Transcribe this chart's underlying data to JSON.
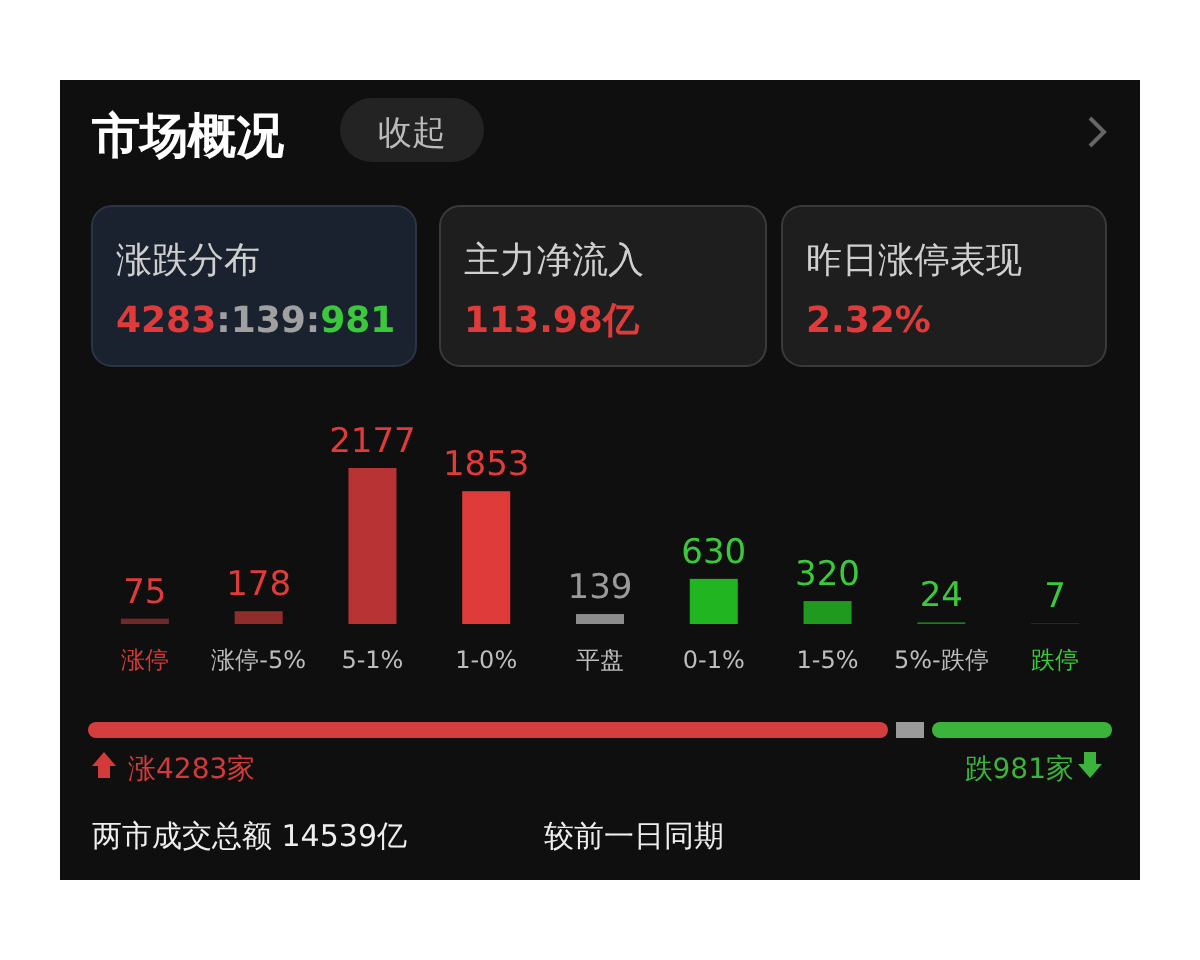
{
  "chart_data": {
    "type": "bar",
    "title": "市场概况",
    "categories": [
      "涨停",
      "涨停-5%",
      "5-1%",
      "1-0%",
      "平盘",
      "0-1%",
      "1-5%",
      "5%-跌停",
      "跌停"
    ],
    "values": [
      75,
      178,
      2177,
      1853,
      139,
      630,
      320,
      24,
      7
    ],
    "colors": [
      "#6e2a2a",
      "#8f2d2d",
      "#b83333",
      "#e03b3b",
      "#8c8c8c",
      "#22b522",
      "#1f9a1f",
      "#1e7a1e",
      "#1b5c1b"
    ],
    "data_labels": true,
    "annotations": [
      "收起",
      "涨跌分布",
      "4283:139:981",
      "主力净流入",
      "113.98亿",
      "昨日涨停表现",
      "2.32%",
      "涨4283家",
      "跌981家",
      "两市成交总额  14539亿",
      "较前一日同期"
    ]
  }
}
